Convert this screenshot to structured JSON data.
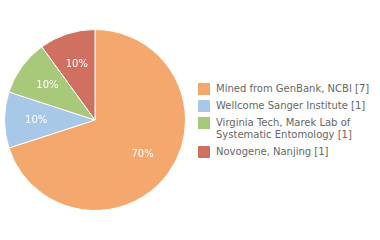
{
  "chart_data": {
    "type": "pie",
    "categories": [
      "Mined from GenBank, NCBI [7]",
      "Wellcome Sanger Institute [1]",
      "Virginia Tech, Marek Lab of\nSystematic Entomology [1]",
      "Novogene, Nanjing [1]"
    ],
    "values": [
      70,
      10,
      10,
      10
    ],
    "value_labels": [
      "70%",
      "10%",
      "10%",
      "10%"
    ],
    "data_labels": true,
    "colors": [
      "#F5A86E",
      "#A8C8E8",
      "#A8C87A",
      "#D07060"
    ],
    "legend": "right"
  }
}
